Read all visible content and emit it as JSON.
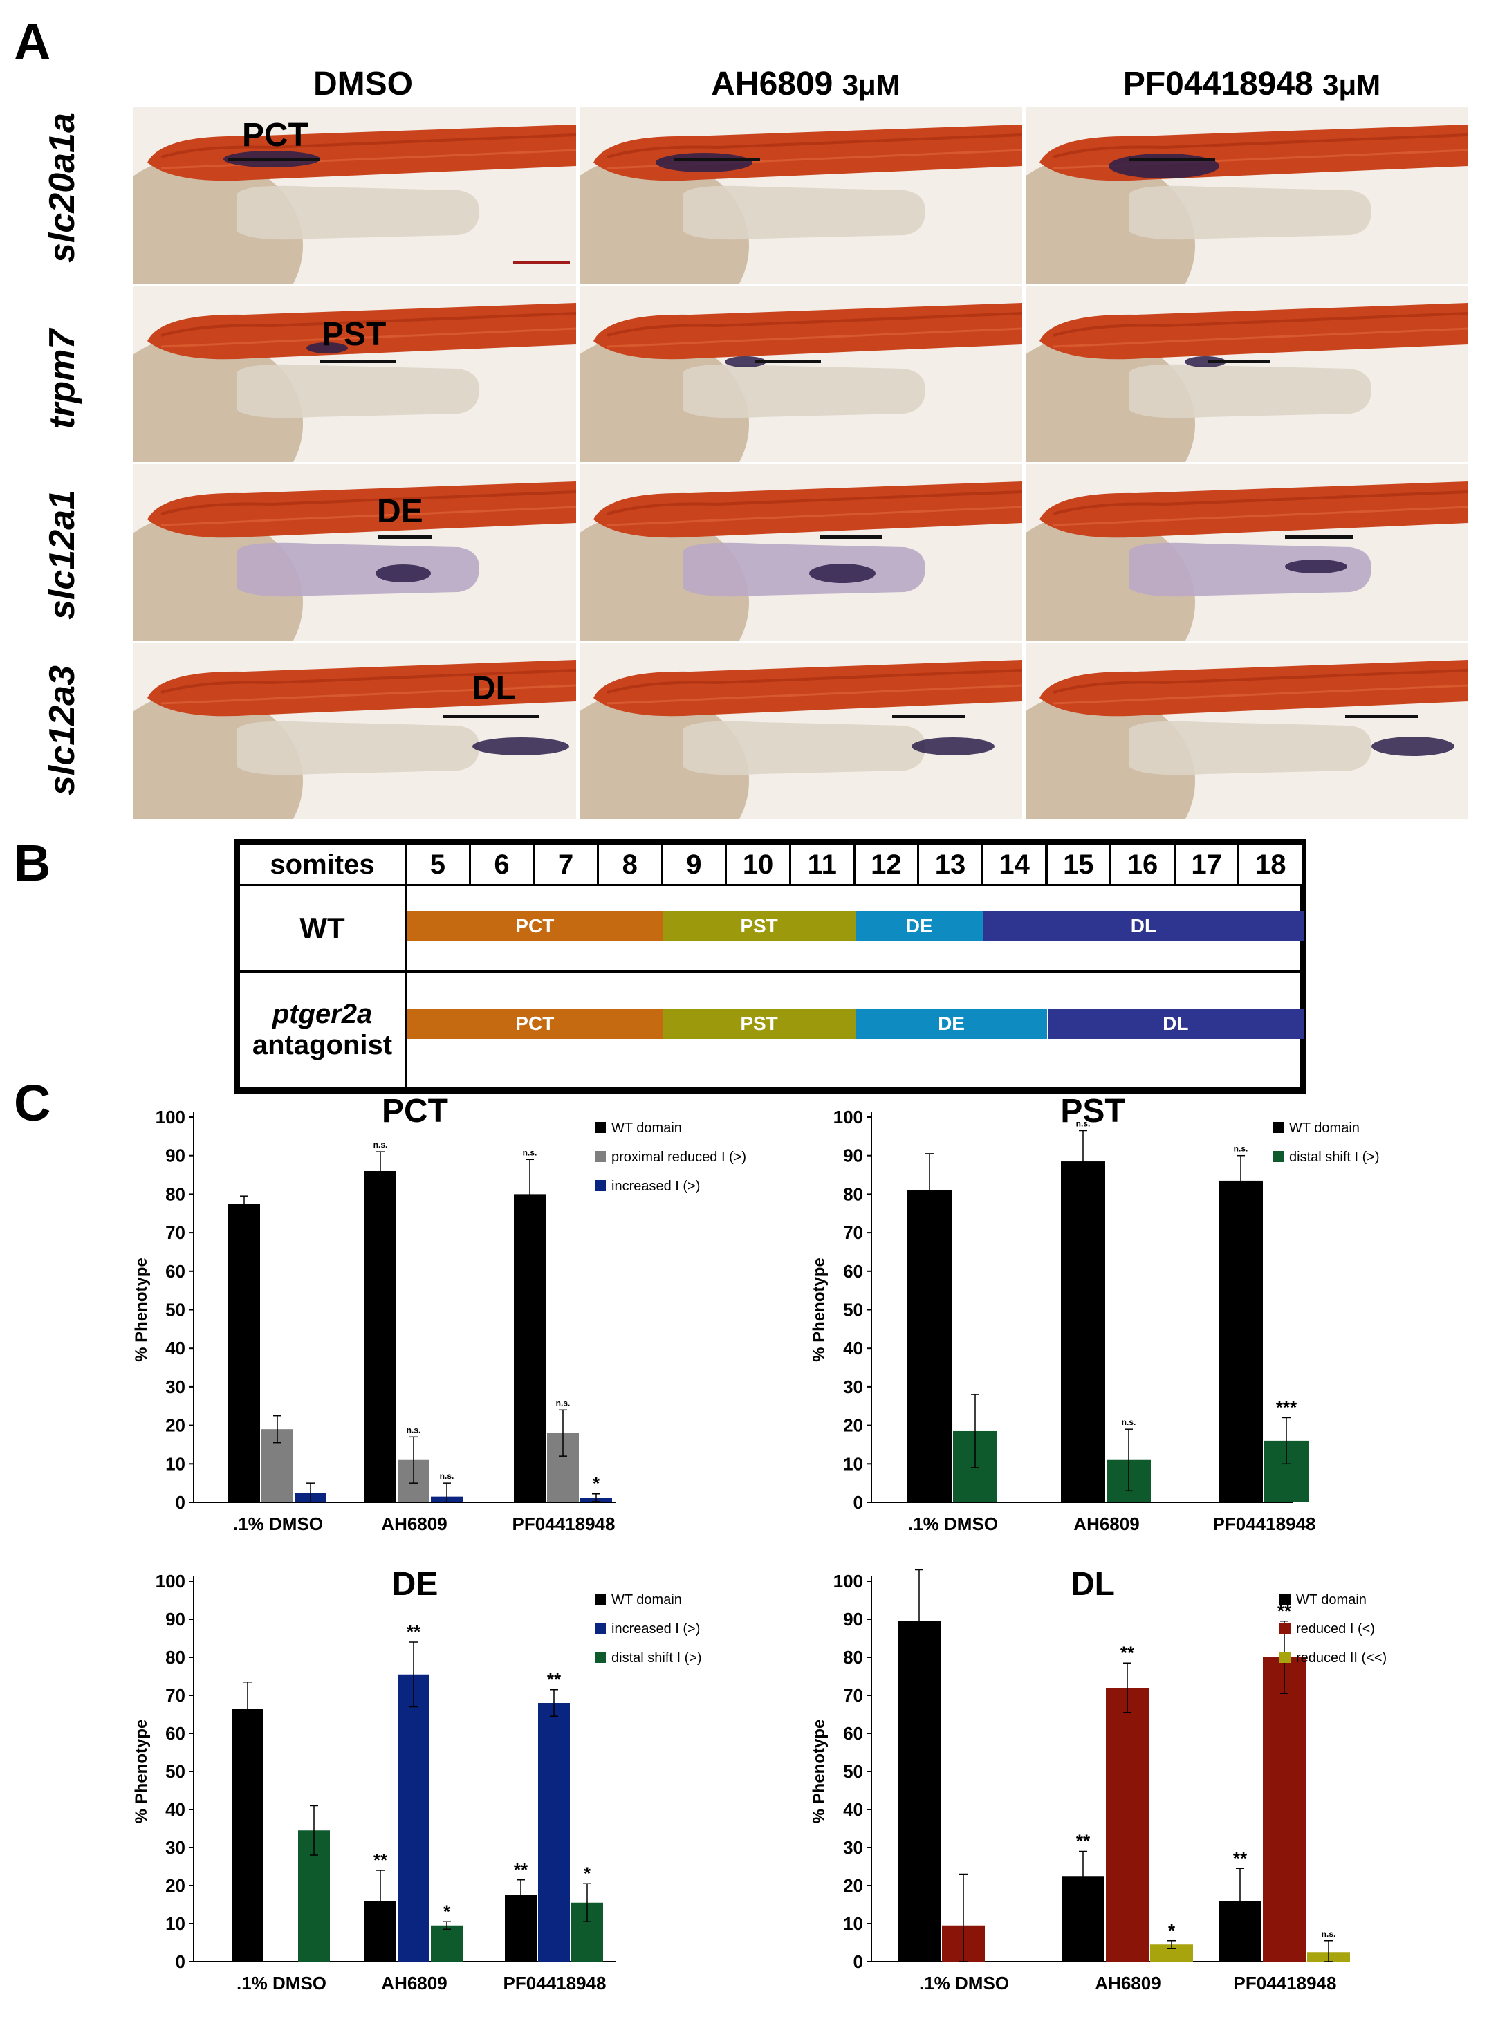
{
  "panel_labels": {
    "a": "A",
    "b": "B",
    "c": "C"
  },
  "panel_a": {
    "columns": [
      {
        "name": "DMSO",
        "conc": ""
      },
      {
        "name": "AH6809",
        "conc": "3μM"
      },
      {
        "name": "PF04418948",
        "conc": "3μM"
      }
    ],
    "rows": [
      {
        "gene": "slc20a1a",
        "segment": "PCT"
      },
      {
        "gene": "trpm7",
        "segment": "PST"
      },
      {
        "gene": "slc12a1",
        "segment": "DE"
      },
      {
        "gene": "slc12a3",
        "segment": "DL"
      }
    ]
  },
  "panel_b": {
    "header_label": "somites",
    "somites": [
      "5",
      "6",
      "7",
      "8",
      "9",
      "10",
      "11",
      "12",
      "13",
      "14",
      "15",
      "16",
      "17",
      "18"
    ],
    "rows": [
      {
        "label": "WT",
        "label2": "",
        "segments": [
          {
            "name": "PCT",
            "start": 5,
            "end": 8,
            "color": "#c56a10"
          },
          {
            "name": "PST",
            "start": 9,
            "end": 11,
            "color": "#9c9a0c"
          },
          {
            "name": "DE",
            "start": 12,
            "end": 13,
            "color": "#0e8cc2"
          },
          {
            "name": "DL",
            "start": 14,
            "end": 18,
            "color": "#2d3590"
          }
        ]
      },
      {
        "label": "ptger2a",
        "label2": "antagonist",
        "segments": [
          {
            "name": "PCT",
            "start": 5,
            "end": 8,
            "color": "#c56a10"
          },
          {
            "name": "PST",
            "start": 9,
            "end": 11,
            "color": "#9c9a0c"
          },
          {
            "name": "DE",
            "start": 12,
            "end": 14,
            "color": "#0e8cc2"
          },
          {
            "name": "DL",
            "start": 15,
            "end": 18,
            "color": "#2d3590"
          }
        ]
      }
    ]
  },
  "chart_data": [
    {
      "type": "bar",
      "title": "PCT",
      "ylabel": "% Phenotype",
      "ylim": [
        0,
        100
      ],
      "yticks": [
        "0",
        "10",
        "20",
        "30",
        "40",
        "50",
        "60",
        "70",
        "80",
        "90",
        "100"
      ],
      "categories": [
        ".1% DMSO",
        "AH6809",
        "PF04418948"
      ],
      "series": [
        {
          "name": "WT domain",
          "color": "#000000",
          "values": [
            77.5,
            86,
            80
          ],
          "err": [
            2,
            5,
            9
          ],
          "sig": [
            "",
            "n.s.",
            "n.s."
          ]
        },
        {
          "name": "proximal reduced I (>)",
          "color": "#7f7f7f",
          "values": [
            19,
            11,
            18
          ],
          "err": [
            3.5,
            6,
            6
          ],
          "sig": [
            "",
            "n.s.",
            "n.s."
          ]
        },
        {
          "name": "increased I (>)",
          "color": "#0a2580",
          "values": [
            2.5,
            1.5,
            1.2
          ],
          "err": [
            2.5,
            3.5,
            1
          ],
          "sig": [
            "",
            "n.s.",
            "*"
          ]
        }
      ]
    },
    {
      "type": "bar",
      "title": "PST",
      "ylabel": "% Phenotype",
      "ylim": [
        0,
        100
      ],
      "yticks": [
        "0",
        "10",
        "20",
        "30",
        "40",
        "50",
        "60",
        "70",
        "80",
        "90",
        "100"
      ],
      "categories": [
        ".1% DMSO",
        "AH6809",
        "PF04418948"
      ],
      "series": [
        {
          "name": "WT domain",
          "color": "#000000",
          "values": [
            81,
            88.5,
            83.5
          ],
          "err": [
            9.5,
            8,
            6.5
          ],
          "sig": [
            "",
            "n.s.",
            "n.s."
          ]
        },
        {
          "name": "distal shift I (>)",
          "color": "#0f5a2c",
          "values": [
            18.5,
            11,
            16
          ],
          "err": [
            9.5,
            8,
            6
          ],
          "sig": [
            "",
            "n.s.",
            "***"
          ]
        }
      ]
    },
    {
      "type": "bar",
      "title": "DE",
      "ylabel": "% Phenotype",
      "ylim": [
        0,
        100
      ],
      "yticks": [
        "0",
        "10",
        "20",
        "30",
        "40",
        "50",
        "60",
        "70",
        "80",
        "90",
        "100"
      ],
      "categories": [
        ".1% DMSO",
        "AH6809",
        "PF04418948"
      ],
      "series": [
        {
          "name": "WT domain",
          "color": "#000000",
          "values": [
            66.5,
            16,
            17.5
          ],
          "err": [
            7,
            8,
            4
          ],
          "sig": [
            "",
            "**",
            "**"
          ]
        },
        {
          "name": "increased I (>)",
          "color": "#0a2580",
          "values": [
            0,
            75.5,
            68
          ],
          "err": [
            0,
            8.5,
            3.5
          ],
          "sig": [
            "",
            "**",
            "**"
          ]
        },
        {
          "name": "distal shift I (>)",
          "color": "#0f5a2c",
          "values": [
            34.5,
            9.5,
            15.5
          ],
          "err": [
            6.5,
            1,
            5
          ],
          "sig": [
            "",
            "*",
            "*"
          ]
        }
      ]
    },
    {
      "type": "bar",
      "title": "DL",
      "ylabel": "% Phenotype",
      "ylim": [
        0,
        100
      ],
      "yticks": [
        "0",
        "10",
        "20",
        "30",
        "40",
        "50",
        "60",
        "70",
        "80",
        "90",
        "100"
      ],
      "categories": [
        ".1% DMSO",
        "AH6809",
        "PF04418948"
      ],
      "series": [
        {
          "name": "WT domain",
          "color": "#000000",
          "values": [
            89.5,
            22.5,
            16
          ],
          "err": [
            13.5,
            6.5,
            8.5
          ],
          "sig": [
            "",
            "**",
            "**"
          ]
        },
        {
          "name": "reduced I (<)",
          "color": "#8b1409",
          "values": [
            9.5,
            72,
            80
          ],
          "err": [
            13.5,
            6.5,
            9.5
          ],
          "sig": [
            "",
            "**",
            "**"
          ]
        },
        {
          "name": "reduced II (<<)",
          "color": "#a7a40e",
          "values": [
            0,
            4.5,
            2.5
          ],
          "err": [
            0,
            1,
            3
          ],
          "sig": [
            "",
            "*",
            "n.s."
          ]
        }
      ]
    }
  ]
}
